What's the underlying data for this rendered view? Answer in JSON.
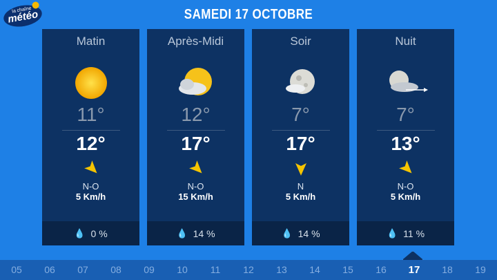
{
  "logo": {
    "small": "la chaîne",
    "main": "météo"
  },
  "title": "SAMEDI 17 OCTOBRE",
  "periods": [
    {
      "label": "Matin",
      "icon": "sun-icon",
      "min": "11°",
      "max": "12°",
      "wind_dir": "N-O",
      "wind_speed": "5 Km/h",
      "precip": "0 %"
    },
    {
      "label": "Après-Midi",
      "icon": "sun-cloud-icon",
      "min": "12°",
      "max": "17°",
      "wind_dir": "N-O",
      "wind_speed": "15 Km/h",
      "precip": "14 %"
    },
    {
      "label": "Soir",
      "icon": "moon-icon",
      "min": "7°",
      "max": "17°",
      "wind_dir": "N",
      "wind_speed": "5 Km/h",
      "precip": "14 %"
    },
    {
      "label": "Nuit",
      "icon": "moon-cloud-wind-icon",
      "min": "7°",
      "max": "13°",
      "wind_dir": "N-O",
      "wind_speed": "5 Km/h",
      "precip": "11 %"
    }
  ],
  "days": [
    "05",
    "06",
    "07",
    "08",
    "09",
    "10",
    "11",
    "12",
    "13",
    "14",
    "15",
    "16",
    "17",
    "18",
    "19"
  ],
  "selected_day": "17"
}
